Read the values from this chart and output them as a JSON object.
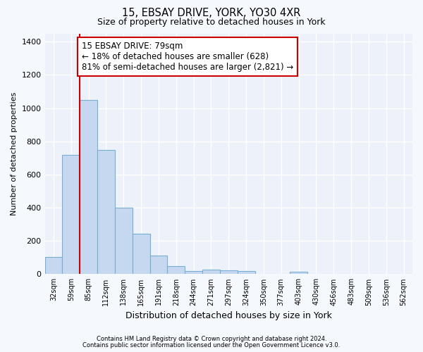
{
  "title1": "15, EBSAY DRIVE, YORK, YO30 4XR",
  "title2": "Size of property relative to detached houses in York",
  "xlabel": "Distribution of detached houses by size in York",
  "ylabel": "Number of detached properties",
  "categories": [
    "32sqm",
    "59sqm",
    "85sqm",
    "112sqm",
    "138sqm",
    "165sqm",
    "191sqm",
    "218sqm",
    "244sqm",
    "271sqm",
    "297sqm",
    "324sqm",
    "350sqm",
    "377sqm",
    "403sqm",
    "430sqm",
    "456sqm",
    "483sqm",
    "509sqm",
    "536sqm",
    "562sqm"
  ],
  "values": [
    105,
    720,
    1050,
    750,
    400,
    245,
    110,
    48,
    20,
    27,
    25,
    20,
    0,
    0,
    15,
    0,
    0,
    0,
    0,
    0,
    0
  ],
  "bar_color": "#c5d8f0",
  "bar_edge_color": "#7aadd4",
  "vline_x": 1.5,
  "vline_color": "#cc0000",
  "annotation_line1": "15 EBSAY DRIVE: 79sqm",
  "annotation_line2": "← 18% of detached houses are smaller (628)",
  "annotation_line3": "81% of semi-detached houses are larger (2,821) →",
  "box_edge_color": "#cc0000",
  "ylim": [
    0,
    1450
  ],
  "yticks": [
    0,
    200,
    400,
    600,
    800,
    1000,
    1200,
    1400
  ],
  "grid_color": "#e0e8f4",
  "bg_color": "#f5f8fd",
  "plot_bg_color": "#edf2fa",
  "footer1": "Contains HM Land Registry data © Crown copyright and database right 2024.",
  "footer2": "Contains public sector information licensed under the Open Government Licence v3.0."
}
